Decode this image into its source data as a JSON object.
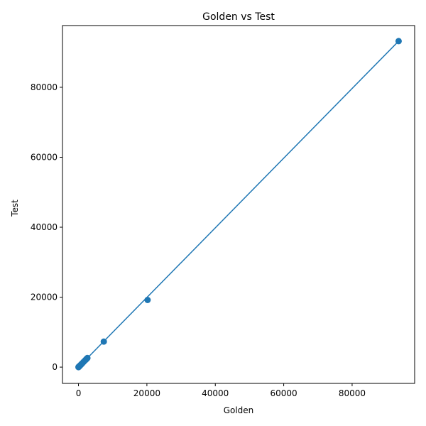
{
  "chart_data": {
    "type": "scatter",
    "title": "Golden vs Test",
    "xlabel": "Golden",
    "ylabel": "Test",
    "xlim": [
      -4680,
      98280
    ],
    "ylim": [
      -4650,
      97650
    ],
    "xticks": [
      0,
      20000,
      40000,
      60000,
      80000
    ],
    "xtick_labels": [
      "0",
      "20000",
      "40000",
      "60000",
      "80000"
    ],
    "yticks": [
      0,
      20000,
      40000,
      60000,
      80000
    ],
    "ytick_labels": [
      "0",
      "20000",
      "40000",
      "60000",
      "80000"
    ],
    "grid": false,
    "color": "#1f77b4",
    "points": [
      {
        "x": 0,
        "y": 0
      },
      {
        "x": 60,
        "y": 60
      },
      {
        "x": 150,
        "y": 150
      },
      {
        "x": 250,
        "y": 250
      },
      {
        "x": 400,
        "y": 400
      },
      {
        "x": 600,
        "y": 600
      },
      {
        "x": 800,
        "y": 800
      },
      {
        "x": 1100,
        "y": 1100
      },
      {
        "x": 1500,
        "y": 1500
      },
      {
        "x": 2000,
        "y": 2000
      },
      {
        "x": 2300,
        "y": 2300
      },
      {
        "x": 2600,
        "y": 2600
      },
      {
        "x": 7400,
        "y": 7300
      },
      {
        "x": 20200,
        "y": 19200
      },
      {
        "x": 93600,
        "y": 93200
      }
    ],
    "line": [
      {
        "x": 0,
        "y": 0
      },
      {
        "x": 93600,
        "y": 93200
      }
    ]
  }
}
